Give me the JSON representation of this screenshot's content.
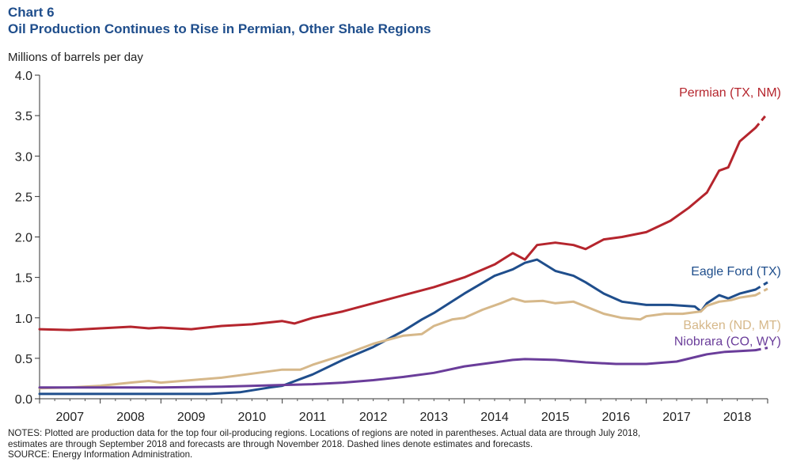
{
  "header": {
    "chart_number": "Chart 6",
    "title": "Oil Production Continues to Rise in Permian, Other Shale Regions"
  },
  "footer": {
    "notes_line1": "NOTES: Plotted are production data for the top four oil-producing regions. Locations of regions are noted in parentheses. Actual data are through July 2018,",
    "notes_line2": "estimates are through September 2018 and forecasts are through November 2018. Dashed lines denote estimates and forecasts.",
    "source": "SOURCE: Energy Information Administration."
  },
  "chart_data": {
    "type": "line",
    "title": "Oil Production Continues to Rise in Permian, Other Shale Regions",
    "ylabel": "Millions of barrels per day",
    "xlabel": "",
    "ylim": [
      0,
      4
    ],
    "yticks": [
      "0.0",
      "0.5",
      "1.0",
      "1.5",
      "2.0",
      "2.5",
      "3.0",
      "3.5",
      "4.0"
    ],
    "xlim": [
      2007.0,
      2019.0
    ],
    "x_tick_labels": [
      "2007",
      "2008",
      "2009",
      "2010",
      "2011",
      "2012",
      "2013",
      "2014",
      "2015",
      "2016",
      "2017",
      "2018"
    ],
    "grid": false,
    "legend": "inline labels at line ends",
    "actual_through": 2018.54,
    "series": [
      {
        "name": "Permian (TX, NM)",
        "color": "#b5252d",
        "points": [
          [
            2007.0,
            0.86
          ],
          [
            2007.5,
            0.85
          ],
          [
            2008.0,
            0.87
          ],
          [
            2008.5,
            0.89
          ],
          [
            2008.8,
            0.87
          ],
          [
            2009.0,
            0.88
          ],
          [
            2009.5,
            0.86
          ],
          [
            2010.0,
            0.9
          ],
          [
            2010.5,
            0.92
          ],
          [
            2011.0,
            0.96
          ],
          [
            2011.2,
            0.93
          ],
          [
            2011.5,
            1.0
          ],
          [
            2012.0,
            1.08
          ],
          [
            2012.5,
            1.18
          ],
          [
            2013.0,
            1.28
          ],
          [
            2013.5,
            1.38
          ],
          [
            2014.0,
            1.5
          ],
          [
            2014.5,
            1.66
          ],
          [
            2014.8,
            1.8
          ],
          [
            2015.0,
            1.72
          ],
          [
            2015.2,
            1.9
          ],
          [
            2015.5,
            1.93
          ],
          [
            2015.8,
            1.9
          ],
          [
            2016.0,
            1.85
          ],
          [
            2016.3,
            1.97
          ],
          [
            2016.6,
            2.0
          ],
          [
            2017.0,
            2.06
          ],
          [
            2017.4,
            2.2
          ],
          [
            2017.7,
            2.36
          ],
          [
            2018.0,
            2.55
          ],
          [
            2018.2,
            2.82
          ],
          [
            2018.35,
            2.86
          ],
          [
            2018.54,
            3.18
          ],
          [
            2018.8,
            3.35
          ]
        ],
        "forecast": [
          [
            2018.8,
            3.35
          ],
          [
            2019.0,
            3.53
          ]
        ]
      },
      {
        "name": "Eagle Ford (TX)",
        "color": "#1f4e8c",
        "points": [
          [
            2007.0,
            0.06
          ],
          [
            2008.0,
            0.06
          ],
          [
            2009.0,
            0.06
          ],
          [
            2009.8,
            0.06
          ],
          [
            2010.3,
            0.08
          ],
          [
            2010.8,
            0.14
          ],
          [
            2011.0,
            0.16
          ],
          [
            2011.5,
            0.3
          ],
          [
            2012.0,
            0.48
          ],
          [
            2012.5,
            0.64
          ],
          [
            2013.0,
            0.84
          ],
          [
            2013.3,
            0.98
          ],
          [
            2013.5,
            1.06
          ],
          [
            2014.0,
            1.3
          ],
          [
            2014.5,
            1.52
          ],
          [
            2014.8,
            1.6
          ],
          [
            2015.0,
            1.68
          ],
          [
            2015.2,
            1.72
          ],
          [
            2015.5,
            1.58
          ],
          [
            2015.8,
            1.52
          ],
          [
            2016.0,
            1.44
          ],
          [
            2016.3,
            1.3
          ],
          [
            2016.6,
            1.2
          ],
          [
            2017.0,
            1.16
          ],
          [
            2017.4,
            1.16
          ],
          [
            2017.8,
            1.14
          ],
          [
            2017.9,
            1.08
          ],
          [
            2018.0,
            1.18
          ],
          [
            2018.2,
            1.28
          ],
          [
            2018.35,
            1.24
          ],
          [
            2018.54,
            1.3
          ],
          [
            2018.8,
            1.35
          ]
        ],
        "forecast": [
          [
            2018.8,
            1.35
          ],
          [
            2019.0,
            1.44
          ]
        ]
      },
      {
        "name": "Bakken (ND, MT)",
        "color": "#d6b88a",
        "points": [
          [
            2007.0,
            0.13
          ],
          [
            2007.5,
            0.14
          ],
          [
            2008.0,
            0.16
          ],
          [
            2008.5,
            0.2
          ],
          [
            2008.8,
            0.22
          ],
          [
            2009.0,
            0.2
          ],
          [
            2009.5,
            0.23
          ],
          [
            2010.0,
            0.26
          ],
          [
            2010.5,
            0.31
          ],
          [
            2011.0,
            0.36
          ],
          [
            2011.3,
            0.36
          ],
          [
            2011.5,
            0.42
          ],
          [
            2012.0,
            0.54
          ],
          [
            2012.5,
            0.68
          ],
          [
            2013.0,
            0.78
          ],
          [
            2013.3,
            0.8
          ],
          [
            2013.5,
            0.9
          ],
          [
            2013.8,
            0.98
          ],
          [
            2014.0,
            1.0
          ],
          [
            2014.3,
            1.1
          ],
          [
            2014.6,
            1.18
          ],
          [
            2014.8,
            1.24
          ],
          [
            2015.0,
            1.2
          ],
          [
            2015.3,
            1.21
          ],
          [
            2015.5,
            1.18
          ],
          [
            2015.8,
            1.2
          ],
          [
            2016.0,
            1.14
          ],
          [
            2016.3,
            1.05
          ],
          [
            2016.6,
            1.0
          ],
          [
            2016.9,
            0.98
          ],
          [
            2017.0,
            1.02
          ],
          [
            2017.3,
            1.05
          ],
          [
            2017.6,
            1.05
          ],
          [
            2017.9,
            1.08
          ],
          [
            2018.0,
            1.15
          ],
          [
            2018.2,
            1.2
          ],
          [
            2018.4,
            1.22
          ],
          [
            2018.54,
            1.25
          ],
          [
            2018.8,
            1.28
          ]
        ],
        "forecast": [
          [
            2018.8,
            1.28
          ],
          [
            2019.0,
            1.36
          ]
        ]
      },
      {
        "name": "Niobrara (CO, WY)",
        "color": "#6a3d9a",
        "points": [
          [
            2007.0,
            0.14
          ],
          [
            2008.0,
            0.14
          ],
          [
            2009.0,
            0.14
          ],
          [
            2010.0,
            0.15
          ],
          [
            2011.0,
            0.17
          ],
          [
            2011.5,
            0.18
          ],
          [
            2012.0,
            0.2
          ],
          [
            2012.5,
            0.23
          ],
          [
            2013.0,
            0.27
          ],
          [
            2013.5,
            0.32
          ],
          [
            2014.0,
            0.4
          ],
          [
            2014.5,
            0.45
          ],
          [
            2014.8,
            0.48
          ],
          [
            2015.0,
            0.49
          ],
          [
            2015.5,
            0.48
          ],
          [
            2016.0,
            0.45
          ],
          [
            2016.5,
            0.43
          ],
          [
            2017.0,
            0.43
          ],
          [
            2017.5,
            0.46
          ],
          [
            2018.0,
            0.55
          ],
          [
            2018.3,
            0.58
          ],
          [
            2018.54,
            0.59
          ],
          [
            2018.8,
            0.6
          ]
        ],
        "forecast": [
          [
            2018.8,
            0.6
          ],
          [
            2019.0,
            0.63
          ]
        ]
      }
    ]
  }
}
